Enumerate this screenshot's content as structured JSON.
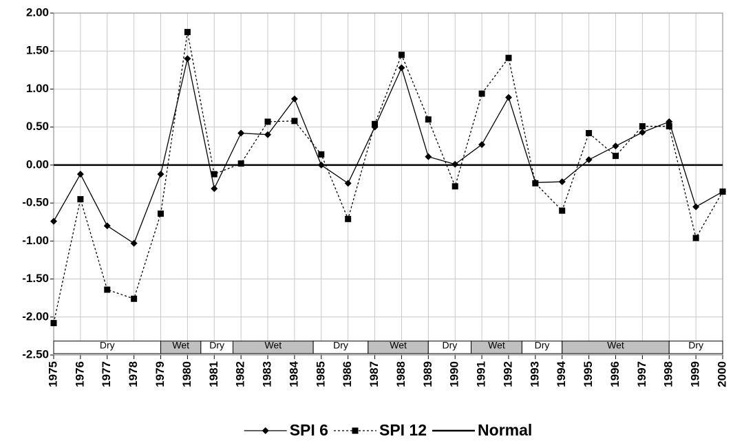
{
  "chart_data": {
    "type": "line",
    "x": [
      1975,
      1976,
      1977,
      1978,
      1979,
      1980,
      1981,
      1982,
      1983,
      1984,
      1985,
      1986,
      1987,
      1988,
      1989,
      1990,
      1991,
      1992,
      1993,
      1994,
      1995,
      1996,
      1997,
      1998,
      1999,
      2000
    ],
    "xlim": [
      1975,
      2000
    ],
    "ylim": [
      -2.5,
      2.0
    ],
    "yticks": [
      {
        "value": 2.0,
        "label": "2.00"
      },
      {
        "value": 1.5,
        "label": "1.50"
      },
      {
        "value": 1.0,
        "label": "1.00"
      },
      {
        "value": 0.5,
        "label": "0.50"
      },
      {
        "value": 0.0,
        "label": "0.00"
      },
      {
        "value": -0.5,
        "label": "-0.50"
      },
      {
        "value": -1.0,
        "label": "-1.00"
      },
      {
        "value": -1.5,
        "label": "-1.50"
      },
      {
        "value": -2.0,
        "label": "-2.00"
      },
      {
        "value": -2.5,
        "label": "-2.50"
      }
    ],
    "grid": true,
    "legend": "bottom",
    "series": [
      {
        "name": "SPI 6",
        "color": "#000000",
        "marker": "diamond",
        "dash": "solid",
        "values": [
          -0.74,
          -0.12,
          -0.8,
          -1.03,
          -0.12,
          1.4,
          -0.31,
          0.42,
          0.4,
          0.87,
          0.0,
          -0.24,
          0.5,
          1.28,
          0.11,
          0.01,
          0.27,
          0.89,
          -0.23,
          -0.22,
          0.07,
          0.25,
          0.43,
          0.57,
          -0.55,
          -0.35
        ]
      },
      {
        "name": "SPI 12",
        "color": "#000000",
        "marker": "square",
        "dash": "dotted",
        "values": [
          -2.08,
          -0.45,
          -1.64,
          -1.76,
          -0.64,
          1.75,
          -0.12,
          0.02,
          0.57,
          0.58,
          0.14,
          -0.71,
          0.54,
          1.45,
          0.6,
          -0.28,
          0.94,
          1.41,
          -0.24,
          -0.6,
          0.42,
          0.12,
          0.51,
          0.51,
          -0.96,
          -0.35
        ]
      },
      {
        "name": "Normal",
        "color": "#000000",
        "marker": "none",
        "dash": "thick",
        "values": [
          0,
          0,
          0,
          0,
          0,
          0,
          0,
          0,
          0,
          0,
          0,
          0,
          0,
          0,
          0,
          0,
          0,
          0,
          0,
          0,
          0,
          0,
          0,
          0,
          0,
          0
        ]
      }
    ],
    "periods": [
      {
        "label": "Dry",
        "start": 1975,
        "end": 1979,
        "color": "#ffffff"
      },
      {
        "label": "Wet",
        "start": 1979,
        "end": 1980.5,
        "color": "#c0c0c0"
      },
      {
        "label": "Dry",
        "start": 1980.5,
        "end": 1981.7,
        "color": "#ffffff"
      },
      {
        "label": "Wet",
        "start": 1981.7,
        "end": 1984.7,
        "color": "#c0c0c0"
      },
      {
        "label": "Dry",
        "start": 1984.7,
        "end": 1986.75,
        "color": "#ffffff"
      },
      {
        "label": "Wet",
        "start": 1986.75,
        "end": 1989,
        "color": "#c0c0c0"
      },
      {
        "label": "Dry",
        "start": 1989,
        "end": 1990.6,
        "color": "#ffffff"
      },
      {
        "label": "Wet",
        "start": 1990.6,
        "end": 1992.5,
        "color": "#c0c0c0"
      },
      {
        "label": "Dry",
        "start": 1992.5,
        "end": 1994,
        "color": "#ffffff"
      },
      {
        "label": "Wet",
        "start": 1994,
        "end": 1998,
        "color": "#c0c0c0"
      },
      {
        "label": "Dry",
        "start": 1998,
        "end": 2000,
        "color": "#ffffff"
      }
    ]
  }
}
